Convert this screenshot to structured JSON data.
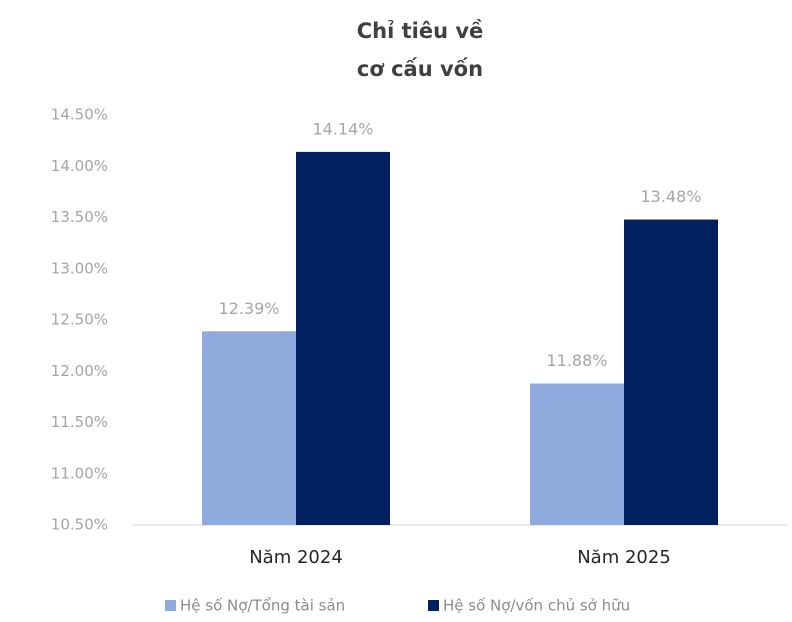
{
  "chart_data": {
    "type": "bar",
    "title": "Chỉ tiêu về\ncơ cấu vốn",
    "categories": [
      "Năm 2024",
      "Năm 2025"
    ],
    "series": [
      {
        "name": "Hệ số Nợ/Tổng tài sản",
        "color": "#8faadc",
        "values": [
          12.39,
          11.88
        ],
        "value_labels": [
          "12.39%",
          "11.88%"
        ]
      },
      {
        "name": "Hệ số Nợ/vốn chủ sở hữu",
        "color": "#002060",
        "values": [
          14.14,
          13.48
        ],
        "value_labels": [
          "14.14%",
          "13.48%"
        ]
      }
    ],
    "ylim": [
      10.5,
      14.5
    ],
    "yticks": [
      {
        "value": 10.5,
        "label": "10.50%"
      },
      {
        "value": 11,
        "label": "11.00%"
      },
      {
        "value": 11.5,
        "label": "11.50%"
      },
      {
        "value": 12,
        "label": "12.00%"
      },
      {
        "value": 12.5,
        "label": "12.50%"
      },
      {
        "value": 13,
        "label": "13.00%"
      },
      {
        "value": 13.5,
        "label": "13.50%"
      },
      {
        "value": 14,
        "label": "14.00%"
      },
      {
        "value": 14.5,
        "label": "14.50%"
      }
    ],
    "grid": false,
    "legend": "bottom"
  }
}
